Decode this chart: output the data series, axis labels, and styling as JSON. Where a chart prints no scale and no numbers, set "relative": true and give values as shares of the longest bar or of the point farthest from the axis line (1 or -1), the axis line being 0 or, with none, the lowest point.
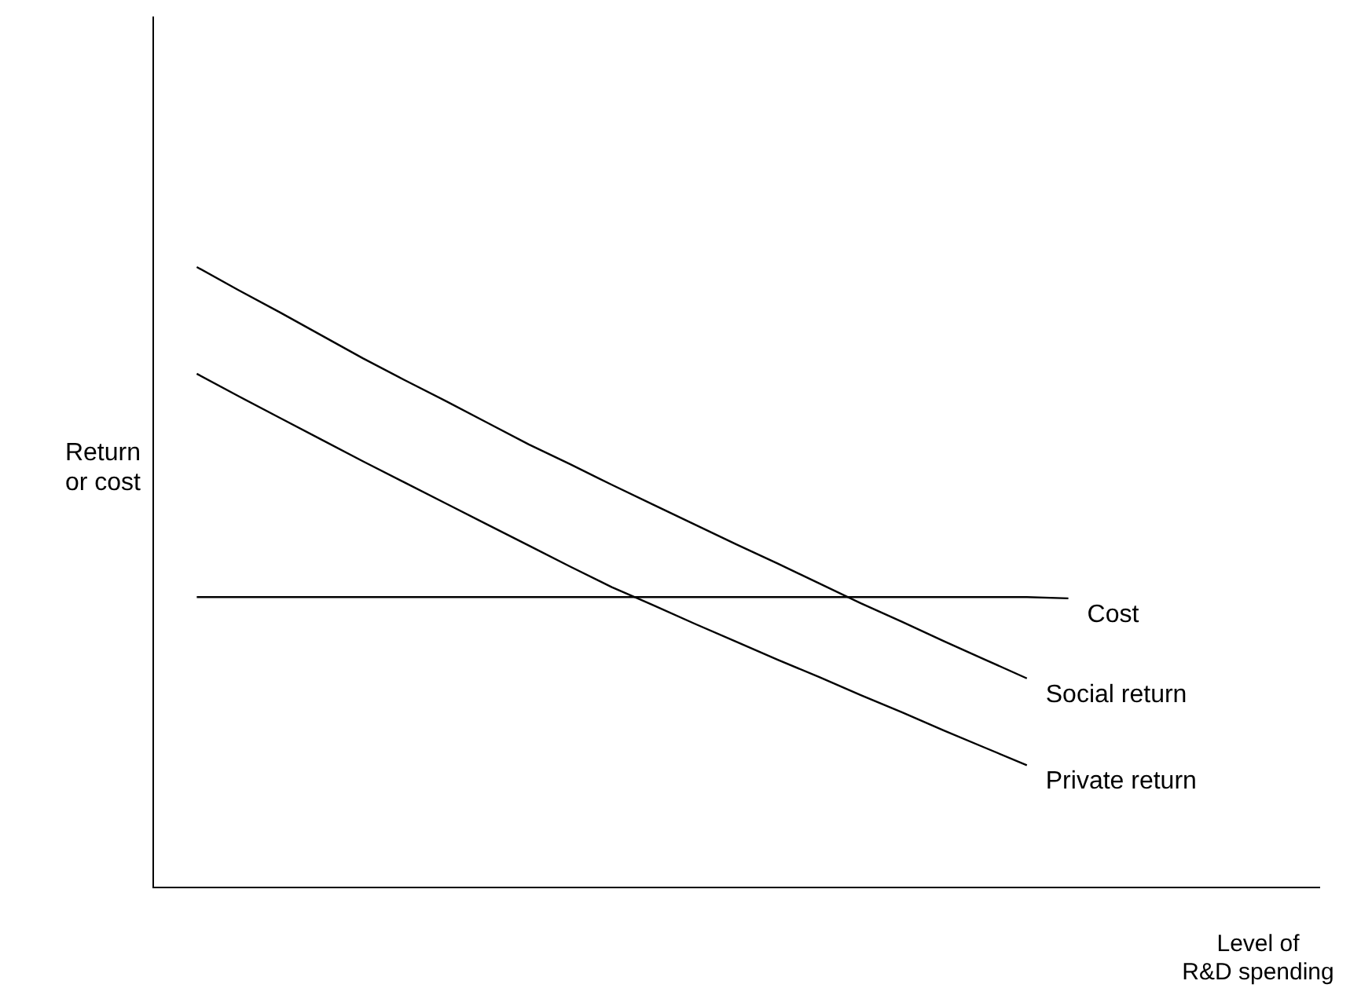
{
  "chart_data": {
    "type": "line",
    "relative": true,
    "grid": false,
    "marker": "none",
    "line_style": "solid",
    "xlabel": "Level of\nR&D spending",
    "ylabel": "Return\nor cost",
    "categories": [
      null,
      null,
      null,
      null,
      null,
      null,
      null,
      null,
      null,
      null,
      null,
      null,
      null,
      null,
      null,
      null,
      null,
      null,
      null,
      null,
      null,
      null
    ],
    "series": [
      {
        "name": "Social return",
        "color": "#000000",
        "values": [
          1.0,
          0.963,
          0.927,
          0.89,
          0.853,
          0.818,
          0.784,
          0.749,
          0.714,
          0.682,
          0.649,
          0.617,
          0.585,
          0.553,
          0.522,
          0.49,
          0.458,
          0.428,
          0.397,
          0.367,
          0.337,
          null
        ]
      },
      {
        "name": "Private return",
        "color": "#000000",
        "values": [
          0.828,
          0.792,
          0.757,
          0.722,
          0.687,
          0.653,
          0.619,
          0.585,
          0.551,
          0.517,
          0.484,
          0.455,
          0.425,
          0.396,
          0.367,
          0.339,
          0.31,
          0.282,
          0.253,
          0.225,
          0.197,
          null
        ]
      },
      {
        "name": "Cost",
        "color": "#000000",
        "values": [
          0.468,
          0.468,
          0.468,
          0.468,
          0.468,
          0.468,
          0.468,
          0.468,
          0.468,
          0.468,
          0.468,
          0.468,
          0.468,
          0.468,
          0.468,
          0.468,
          0.468,
          0.468,
          0.468,
          0.468,
          0.468,
          0.466
        ]
      }
    ]
  }
}
